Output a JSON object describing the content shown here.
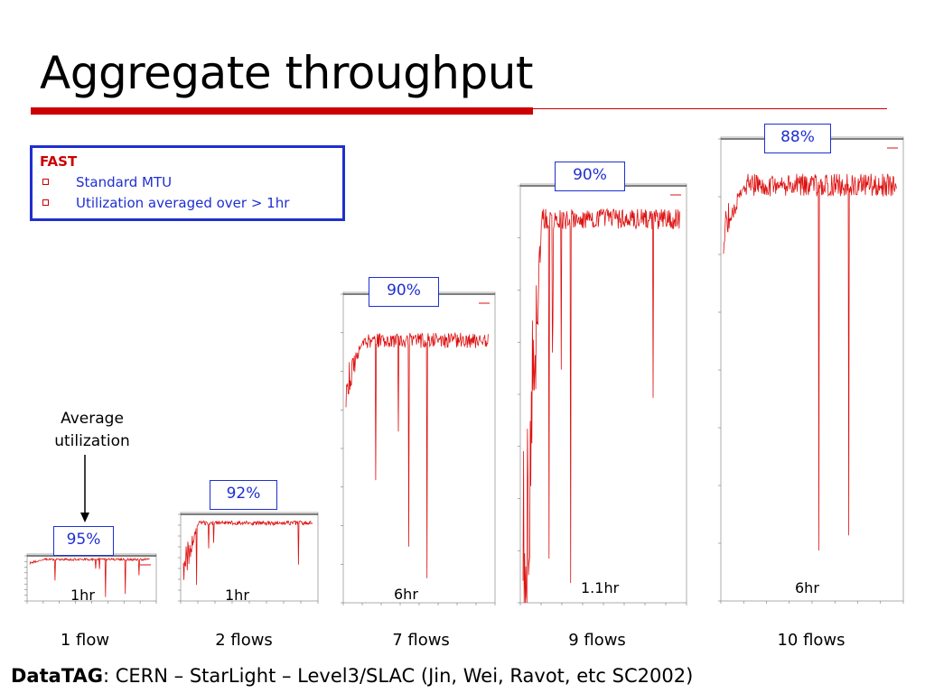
{
  "title": "Aggregate throughput",
  "infobox": {
    "heading": "FAST",
    "items": [
      "Standard MTU",
      "Utilization averaged over > 1hr"
    ]
  },
  "annotation": {
    "line1": "Average",
    "line2": "utilization"
  },
  "plots": [
    {
      "flows": "1 flow",
      "duration": "1hr",
      "utilization": "95%"
    },
    {
      "flows": "2 flows",
      "duration": "1hr",
      "utilization": "92%"
    },
    {
      "flows": "7 flows",
      "duration": "6hr",
      "utilization": "90%"
    },
    {
      "flows": "9 flows",
      "duration": "1.1hr",
      "utilization": "90%"
    },
    {
      "flows": "10 flows",
      "duration": "6hr",
      "utilization": "88%"
    }
  ],
  "footer": {
    "bold": "DataTAG",
    "rest": ": CERN – StarLight – Level3/SLAC (Jin, Wei, Ravot, etc SC2002)"
  },
  "colors": {
    "accent": "#cc0000",
    "box_border": "#1f2fd1",
    "trace": "#dd1111"
  }
}
